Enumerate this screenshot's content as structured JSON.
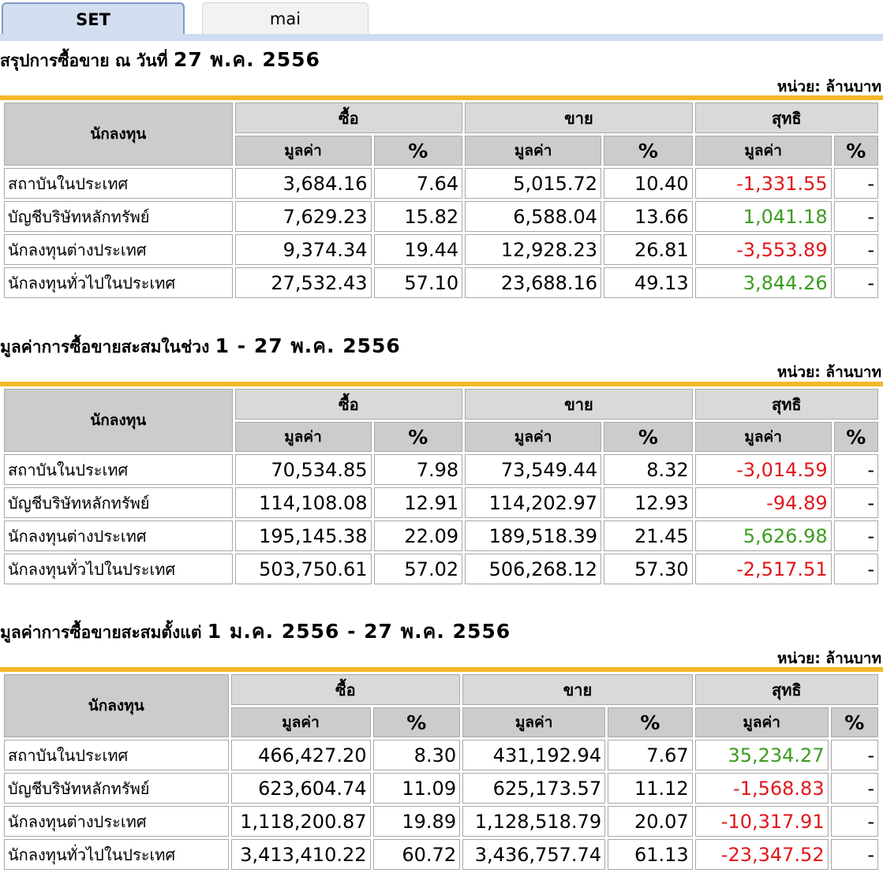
{
  "tabs": [
    {
      "label": "SET",
      "active": true
    },
    {
      "label": "mai",
      "active": false
    }
  ],
  "headers": {
    "investor": "นักลงทุน",
    "buy": "ซื้อ",
    "sell": "ขาย",
    "net": "สุทธิ",
    "value": "มูลค่า",
    "percent": "%"
  },
  "unit_label": "หน่วย: ล้านบาท",
  "colors": {
    "negative": "#e0171b",
    "positive": "#3a9d1e",
    "gold_bar": "#f4b829",
    "tab_active": "#d3def0"
  },
  "sections": [
    {
      "title_prefix": "สรุปการซื้อขาย ณ วันที่",
      "title_date": "27 พ.ค. 2556",
      "rows": [
        {
          "name": "สถาบันในประเทศ",
          "buy_value": "3,684.16",
          "buy_pct": "7.64",
          "sell_value": "5,015.72",
          "sell_pct": "10.40",
          "net_value": "-1,331.55",
          "net_pct": "-"
        },
        {
          "name": "บัญชีบริษัทหลักทรัพย์",
          "buy_value": "7,629.23",
          "buy_pct": "15.82",
          "sell_value": "6,588.04",
          "sell_pct": "13.66",
          "net_value": "1,041.18",
          "net_pct": "-"
        },
        {
          "name": "นักลงทุนต่างประเทศ",
          "buy_value": "9,374.34",
          "buy_pct": "19.44",
          "sell_value": "12,928.23",
          "sell_pct": "26.81",
          "net_value": "-3,553.89",
          "net_pct": "-"
        },
        {
          "name": "นักลงทุนทั่วไปในประเทศ",
          "buy_value": "27,532.43",
          "buy_pct": "57.10",
          "sell_value": "23,688.16",
          "sell_pct": "49.13",
          "net_value": "3,844.26",
          "net_pct": "-"
        }
      ]
    },
    {
      "title_prefix": "มูลค่าการซื้อขายสะสมในช่วง",
      "title_date": "1 - 27 พ.ค. 2556",
      "rows": [
        {
          "name": "สถาบันในประเทศ",
          "buy_value": "70,534.85",
          "buy_pct": "7.98",
          "sell_value": "73,549.44",
          "sell_pct": "8.32",
          "net_value": "-3,014.59",
          "net_pct": "-"
        },
        {
          "name": "บัญชีบริษัทหลักทรัพย์",
          "buy_value": "114,108.08",
          "buy_pct": "12.91",
          "sell_value": "114,202.97",
          "sell_pct": "12.93",
          "net_value": "-94.89",
          "net_pct": "-"
        },
        {
          "name": "นักลงทุนต่างประเทศ",
          "buy_value": "195,145.38",
          "buy_pct": "22.09",
          "sell_value": "189,518.39",
          "sell_pct": "21.45",
          "net_value": "5,626.98",
          "net_pct": "-"
        },
        {
          "name": "นักลงทุนทั่วไปในประเทศ",
          "buy_value": "503,750.61",
          "buy_pct": "57.02",
          "sell_value": "506,268.12",
          "sell_pct": "57.30",
          "net_value": "-2,517.51",
          "net_pct": "-"
        }
      ]
    },
    {
      "title_prefix": "มูลค่าการซื้อขายสะสมตั้งแต่",
      "title_date": "1 ม.ค. 2556 - 27 พ.ค. 2556",
      "rows": [
        {
          "name": "สถาบันในประเทศ",
          "buy_value": "466,427.20",
          "buy_pct": "8.30",
          "sell_value": "431,192.94",
          "sell_pct": "7.67",
          "net_value": "35,234.27",
          "net_pct": "-"
        },
        {
          "name": "บัญชีบริษัทหลักทรัพย์",
          "buy_value": "623,604.74",
          "buy_pct": "11.09",
          "sell_value": "625,173.57",
          "sell_pct": "11.12",
          "net_value": "-1,568.83",
          "net_pct": "-"
        },
        {
          "name": "นักลงทุนต่างประเทศ",
          "buy_value": "1,118,200.87",
          "buy_pct": "19.89",
          "sell_value": "1,128,518.79",
          "sell_pct": "20.07",
          "net_value": "-10,317.91",
          "net_pct": "-"
        },
        {
          "name": "นักลงทุนทั่วไปในประเทศ",
          "buy_value": "3,413,410.22",
          "buy_pct": "60.72",
          "sell_value": "3,436,757.74",
          "sell_pct": "61.13",
          "net_value": "-23,347.52",
          "net_pct": "-"
        }
      ]
    }
  ]
}
